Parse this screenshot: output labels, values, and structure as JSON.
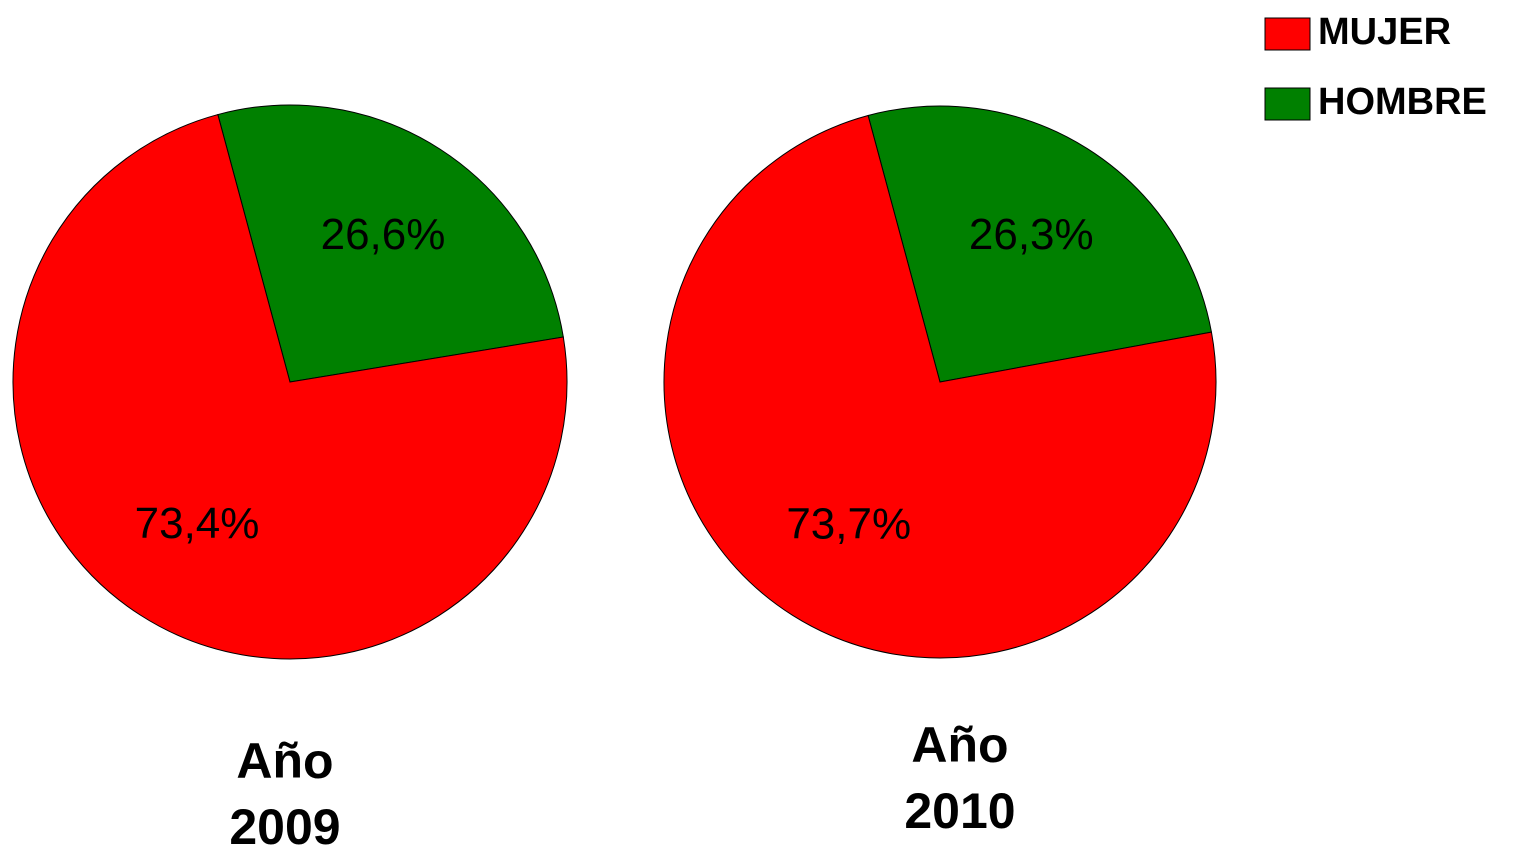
{
  "chart_data": [
    {
      "type": "pie",
      "title": "Año 2009",
      "categories": [
        "MUJER",
        "HOMBRE"
      ],
      "values": [
        73.4,
        26.6
      ],
      "value_labels": [
        "73,4%",
        "26,6%"
      ],
      "colors": [
        "#ff0000",
        "#008000"
      ]
    },
    {
      "type": "pie",
      "title": "Año 2010",
      "categories": [
        "MUJER",
        "HOMBRE"
      ],
      "values": [
        73.7,
        26.3
      ],
      "value_labels": [
        "73,7%",
        "26,3%"
      ],
      "colors": [
        "#ff0000",
        "#008000"
      ]
    }
  ]
}
